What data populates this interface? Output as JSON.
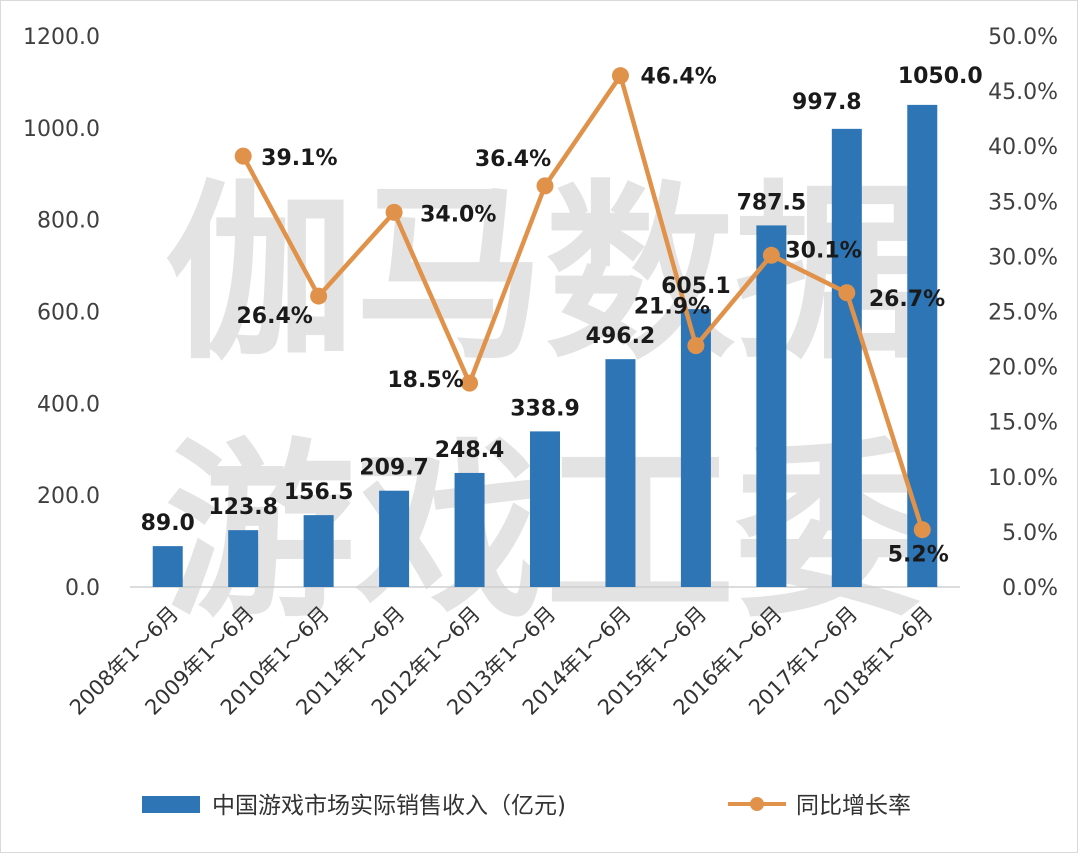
{
  "watermark": {
    "line1": "伽马数据",
    "line2": "游戏工委"
  },
  "chart_data": {
    "type": "bar",
    "categories": [
      "2008年1～6月",
      "2009年1～6月",
      "2010年1～6月",
      "2011年1～6月",
      "2012年1～6月",
      "2013年1～6月",
      "2014年1～6月",
      "2015年1～6月",
      "2016年1～6月",
      "2017年1～6月",
      "2018年1～6月"
    ],
    "series": [
      {
        "name": "中国游戏市场实际销售收入（亿元)",
        "type": "bar",
        "axis": "left",
        "color": "#2e75b6",
        "values": [
          89.0,
          123.8,
          156.5,
          209.7,
          248.4,
          338.9,
          496.2,
          605.1,
          787.5,
          997.8,
          1050.0
        ],
        "labels": [
          "89.0",
          "123.8",
          "156.5",
          "209.7",
          "248.4",
          "338.9",
          "496.2",
          "605.1",
          "787.5",
          "997.8",
          "1050.0"
        ]
      },
      {
        "name": "同比增长率",
        "type": "line",
        "axis": "right",
        "color": "#e0924a",
        "values": [
          null,
          39.1,
          26.4,
          34.0,
          18.5,
          36.4,
          46.4,
          21.9,
          30.1,
          26.7,
          5.2
        ],
        "labels": [
          null,
          "39.1%",
          "26.4%",
          "34.0%",
          "18.5%",
          "36.4%",
          "46.4%",
          "21.9%",
          "30.1%",
          "26.7%",
          "5.2%"
        ]
      }
    ],
    "y_left": {
      "range": [
        0,
        1200
      ],
      "ticks": [
        "0.0",
        "200.0",
        "400.0",
        "600.0",
        "800.0",
        "1000.0",
        "1200.0"
      ]
    },
    "y_right": {
      "range": [
        0,
        50
      ],
      "ticks": [
        "0.0%",
        "5.0%",
        "10.0%",
        "15.0%",
        "20.0%",
        "25.0%",
        "30.0%",
        "35.0%",
        "40.0%",
        "45.0%",
        "50.0%"
      ]
    },
    "grid": false,
    "legend_position": "bottom"
  }
}
